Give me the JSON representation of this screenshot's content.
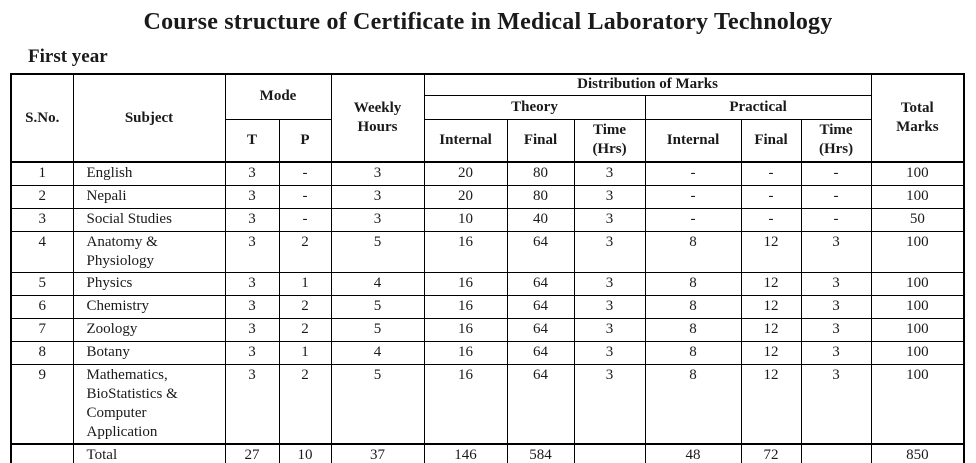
{
  "page": {
    "title": "Course structure of Certificate in Medical Laboratory Technology",
    "section_label": "First year"
  },
  "table": {
    "header": {
      "s_no": "S.No.",
      "subject": "Subject",
      "mode": "Mode",
      "mode_t": "T",
      "mode_p": "P",
      "weekly_hours": "Weekly\nHours",
      "distribution_of_marks": "Distribution of Marks",
      "theory": "Theory",
      "practical": "Practical",
      "theory_internal": "Internal",
      "theory_final": "Final",
      "theory_time": "Time\n(Hrs)",
      "practical_internal": "Internal",
      "practical_final": "Final",
      "practical_time": "Time\n(Hrs)",
      "total_marks": "Total\nMarks"
    },
    "rows": [
      [
        "1",
        "English",
        "3",
        "-",
        "3",
        "20",
        "80",
        "3",
        "-",
        "-",
        "-",
        "100"
      ],
      [
        "2",
        "Nepali",
        "3",
        "-",
        "3",
        "20",
        "80",
        "3",
        "-",
        "-",
        "-",
        "100"
      ],
      [
        "3",
        "Social Studies",
        "3",
        "-",
        "3",
        "10",
        "40",
        "3",
        "-",
        "-",
        "-",
        "50"
      ],
      [
        "4",
        "Anatomy &\nPhysiology",
        "3",
        "2",
        "5",
        "16",
        "64",
        "3",
        "8",
        "12",
        "3",
        "100"
      ],
      [
        "5",
        "Physics",
        "3",
        "1",
        "4",
        "16",
        "64",
        "3",
        "8",
        "12",
        "3",
        "100"
      ],
      [
        "6",
        "Chemistry",
        "3",
        "2",
        "5",
        "16",
        "64",
        "3",
        "8",
        "12",
        "3",
        "100"
      ],
      [
        "7",
        "Zoology",
        "3",
        "2",
        "5",
        "16",
        "64",
        "3",
        "8",
        "12",
        "3",
        "100"
      ],
      [
        "8",
        "Botany",
        "3",
        "1",
        "4",
        "16",
        "64",
        "3",
        "8",
        "12",
        "3",
        "100"
      ],
      [
        "9",
        "Mathematics,\nBioStatistics &\nComputer\nApplication",
        "3",
        "2",
        "5",
        "16",
        "64",
        "3",
        "8",
        "12",
        "3",
        "100"
      ]
    ],
    "total_row": [
      "",
      "Total",
      "27",
      "10",
      "37",
      "146",
      "584",
      "",
      "48",
      "72",
      "",
      "850"
    ]
  },
  "colors": {
    "text": "#1a1a1a",
    "border": "#000000",
    "background": "#ffffff"
  }
}
